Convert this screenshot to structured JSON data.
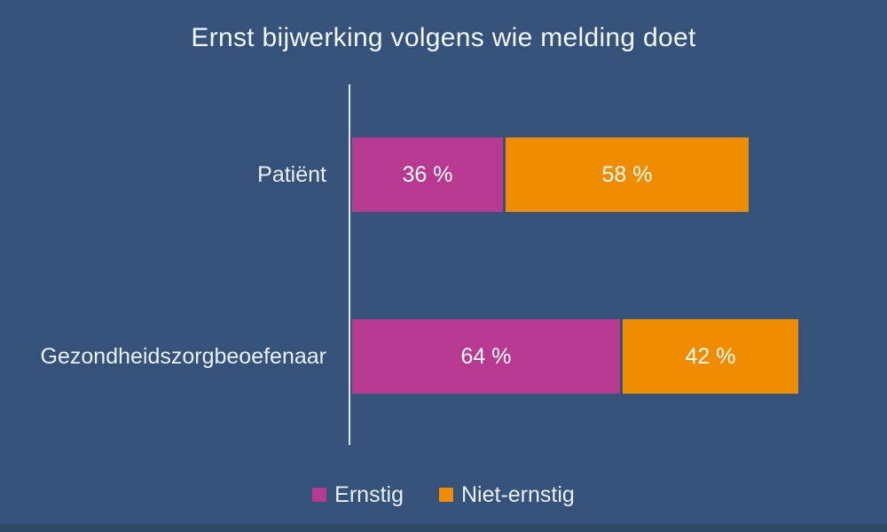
{
  "colors": {
    "canvas_bg": "#35537A",
    "bottom_strip": "#2E4966",
    "axis_line": "#DCE6ED",
    "title_text": "#F2F6FA",
    "label_text": "#E9F0F6",
    "value_text": "#FFFFFF",
    "series_ernstig": "#B83A90",
    "series_niet_ernstig": "#F08C00"
  },
  "chart_data": {
    "type": "bar",
    "orientation": "horizontal",
    "stacked": true,
    "title": "Ernst bijwerking volgens wie melding doet",
    "unit": "%",
    "grid": false,
    "categories": [
      "Patiënt",
      "Gezondheidszorgbeoefenaar"
    ],
    "series": [
      {
        "name": "Ernstig",
        "color": "#B83A90",
        "values": [
          36,
          64
        ],
        "display_labels": [
          "36 %",
          "64 %"
        ]
      },
      {
        "name": "Niet-ernstig",
        "color": "#F08C00",
        "values": [
          58,
          42
        ],
        "display_labels": [
          "58 %",
          "42 %"
        ]
      }
    ],
    "legend": {
      "position": "bottom",
      "entries": [
        {
          "label": "Ernstig",
          "color": "#B83A90"
        },
        {
          "label": "Niet-ernstig",
          "color": "#F08C00"
        }
      ]
    }
  }
}
